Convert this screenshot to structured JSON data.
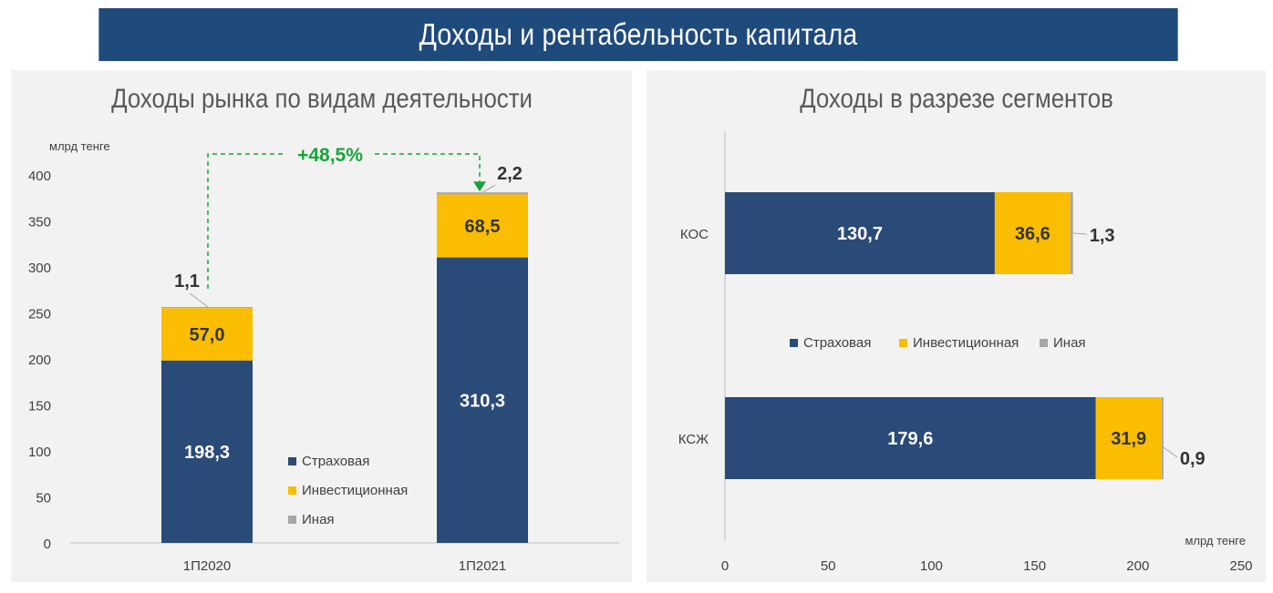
{
  "banner_title": "Доходы и рентабельность капитала",
  "colors": {
    "insurance": "#2a4a78",
    "investment": "#fbbd00",
    "other": "#a6a6a6",
    "growth": "#1aa33a",
    "banner": "#1f4a7c"
  },
  "chart_data": [
    {
      "type": "bar",
      "stacked": true,
      "orientation": "vertical",
      "title": "Доходы рынка по видам деятельности",
      "ylabel": "млрд тенге",
      "xlabel": "",
      "ylim": [
        0,
        400
      ],
      "yticks": [
        "0",
        "50",
        "100",
        "150",
        "200",
        "250",
        "300",
        "350",
        "400"
      ],
      "categories": [
        "1П2020",
        "1П2021"
      ],
      "series": [
        {
          "name": "Страховая",
          "values": [
            198.3,
            310.3
          ],
          "labels": [
            "198,3",
            "310,3"
          ]
        },
        {
          "name": "Инвестиционная",
          "values": [
            57.0,
            68.5
          ],
          "labels": [
            "57,0",
            "68,5"
          ]
        },
        {
          "name": "Иная",
          "values": [
            1.1,
            2.2
          ],
          "labels": [
            "1,1",
            "2,2"
          ]
        }
      ],
      "annotation": "+48,5%",
      "legend": "middle-right",
      "grid": false
    },
    {
      "type": "bar",
      "stacked": true,
      "orientation": "horizontal",
      "title": "Доходы в разрезе сегментов",
      "xlabel": "млрд тенге",
      "ylabel": "",
      "xlim": [
        0,
        250
      ],
      "xticks": [
        "0",
        "50",
        "100",
        "150",
        "200",
        "250"
      ],
      "categories": [
        "КОС",
        "КСЖ"
      ],
      "series": [
        {
          "name": "Страховая",
          "values": [
            130.7,
            179.6
          ],
          "labels": [
            "130,7",
            "179,6"
          ]
        },
        {
          "name": "Инвестиционная",
          "values": [
            36.6,
            31.9
          ],
          "labels": [
            "36,6",
            "31,9"
          ]
        },
        {
          "name": "Иная",
          "values": [
            1.3,
            0.9
          ],
          "labels": [
            "1,3",
            "0,9"
          ]
        }
      ],
      "legend": "center",
      "grid": false
    }
  ]
}
